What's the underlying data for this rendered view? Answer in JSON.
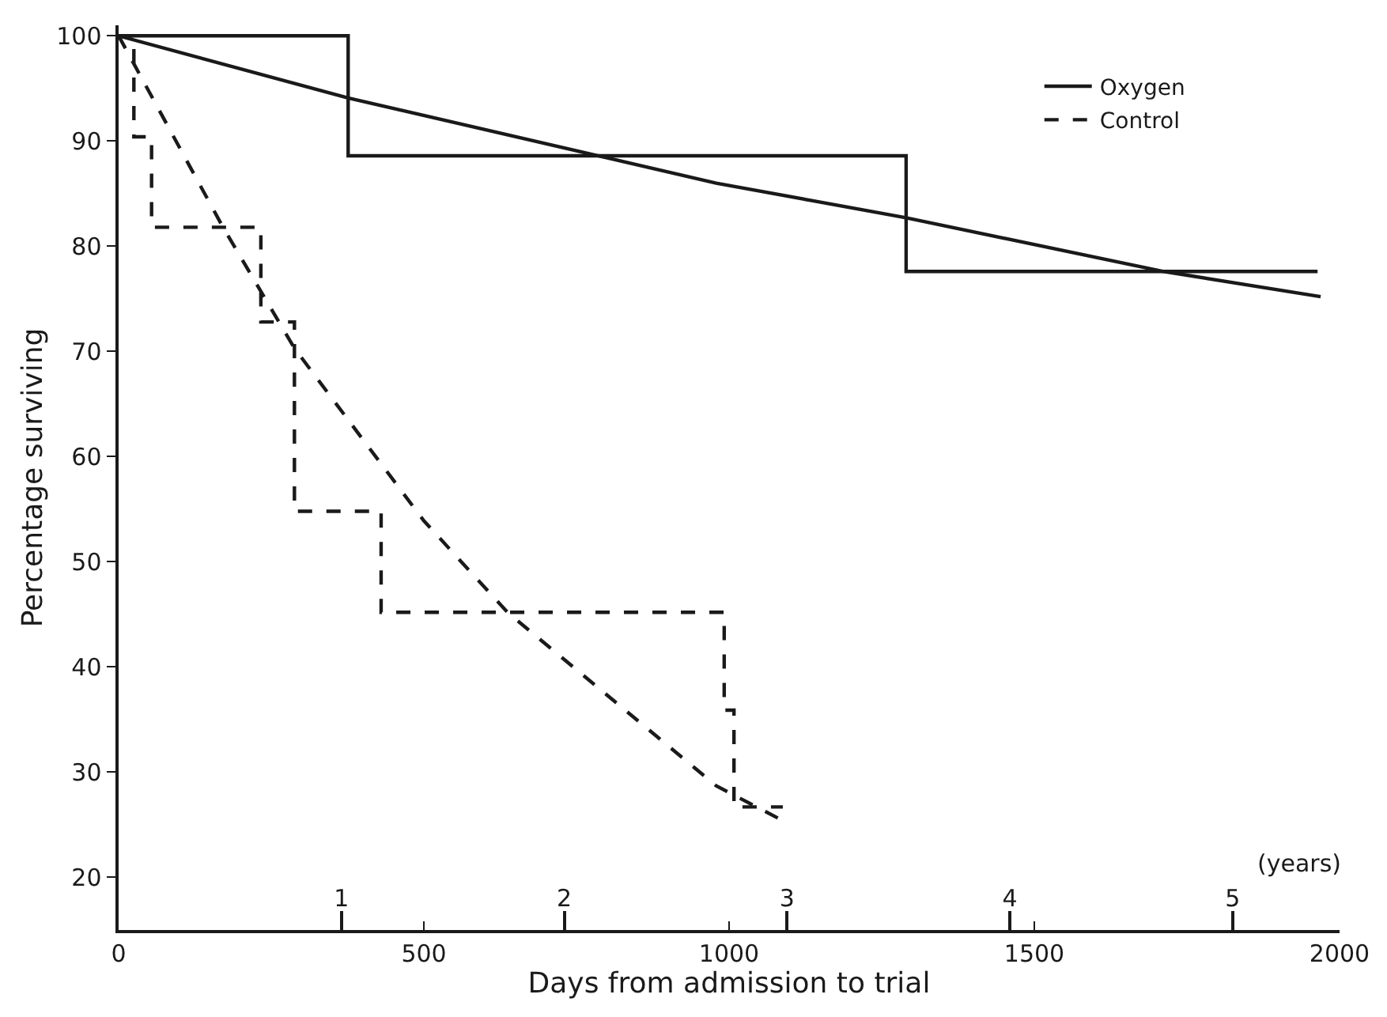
{
  "chart_data": {
    "type": "step",
    "xlabel": "Days from admission to trial",
    "ylabel": "Percentage surviving",
    "xlim": [
      0,
      2000
    ],
    "xticks": [
      0,
      500,
      1000,
      1500,
      2000
    ],
    "ylim": [
      15,
      101
    ],
    "yticks": [
      20,
      30,
      40,
      50,
      60,
      70,
      80,
      90,
      100
    ],
    "x2lim": [
      0,
      5.48
    ],
    "x2ticks": [
      1,
      2,
      3,
      4,
      5
    ],
    "x2label": "(years)",
    "legend": "top right",
    "marker": "none",
    "series": [
      {
        "name": "Oxygen",
        "color": "#1a1a1a",
        "line_style": "solid",
        "x": [
          0,
          376,
          1290,
          1964
        ],
        "values": [
          100,
          88.6,
          77.6,
          77.6
        ]
      },
      {
        "name": "Control",
        "color": "#1a1a1a",
        "line_style": "dashed",
        "x": [
          0,
          25,
          54,
          233,
          288,
          430,
          992,
          1008,
          1088
        ],
        "values": [
          100,
          90.4,
          81.8,
          72.8,
          54.8,
          45.2,
          35.9,
          26.7,
          26.7
        ]
      },
      {
        "type": "line",
        "color": "#1a1a1a",
        "line_style": "solid",
        "x": [
          0,
          376,
          979,
          1290,
          1712,
          1969
        ],
        "values": [
          100,
          94.1,
          86.0,
          82.7,
          77.6,
          75.2
        ]
      },
      {
        "type": "line",
        "color": "#1a1a1a",
        "line_style": "dashed",
        "x": [
          0,
          171,
          288,
          500,
          637,
          979,
          1088
        ],
        "values": [
          100,
          81.8,
          70.3,
          53.9,
          45.2,
          28.7,
          25.4
        ]
      }
    ]
  }
}
